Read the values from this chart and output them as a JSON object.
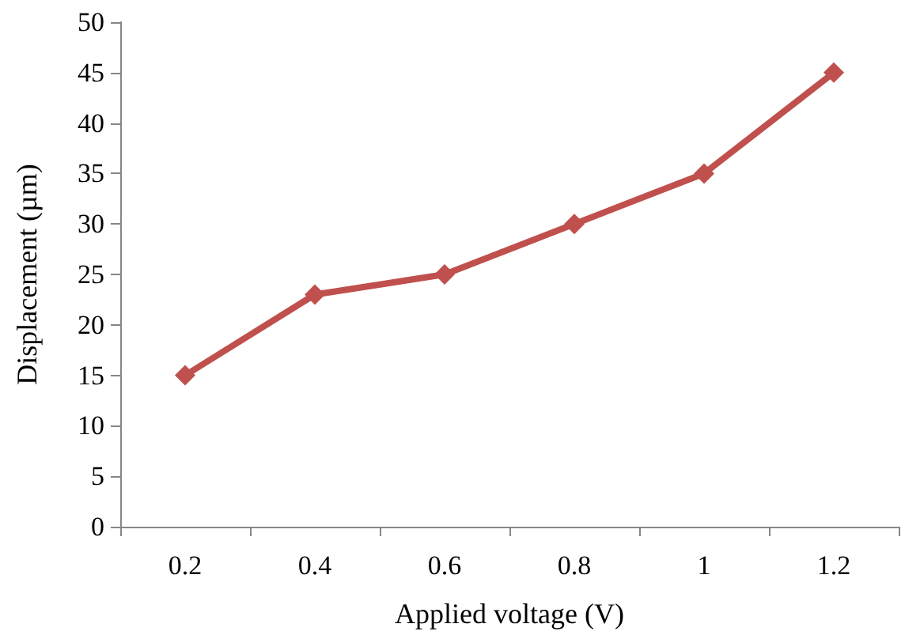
{
  "chart_data": {
    "type": "line",
    "xlabel": "Applied voltage (V)",
    "ylabel": "Displacement (µm)",
    "categories": [
      "0.2",
      "0.4",
      "0.6",
      "0.8",
      "1",
      "1.2"
    ],
    "series": [
      {
        "color": "#c0504d",
        "values": [
          15,
          23,
          25,
          30,
          35,
          45
        ]
      }
    ],
    "ylim": [
      0,
      50
    ],
    "yticks": [
      0,
      5,
      10,
      15,
      20,
      25,
      30,
      35,
      40,
      45,
      50
    ],
    "grid": false,
    "marker": "diamond",
    "line_style": "solid"
  }
}
